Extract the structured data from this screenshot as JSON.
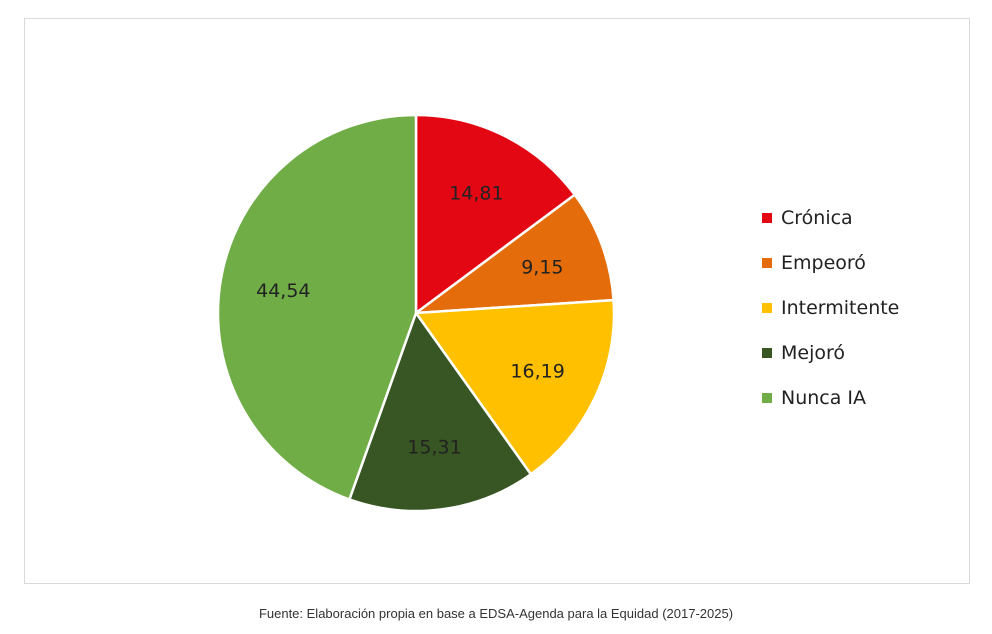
{
  "chart_data": {
    "type": "pie",
    "title": "",
    "categories": [
      "Crónica",
      "Empeoró",
      "Intermitente",
      "Mejoró",
      "Nunca IA"
    ],
    "values": [
      14.81,
      9.15,
      16.19,
      15.31,
      44.54
    ],
    "value_labels": [
      "14,81",
      "9,15",
      "16,19",
      "15,31",
      "44,54"
    ],
    "colors": [
      "#e30613",
      "#e46c0a",
      "#ffc000",
      "#375623",
      "#70ad47"
    ],
    "start_angle": "top, clockwise",
    "legend_position": "right"
  },
  "source": "Fuente: Elaboración propia en base a EDSA-Agenda para la Equidad (2017-2025)"
}
